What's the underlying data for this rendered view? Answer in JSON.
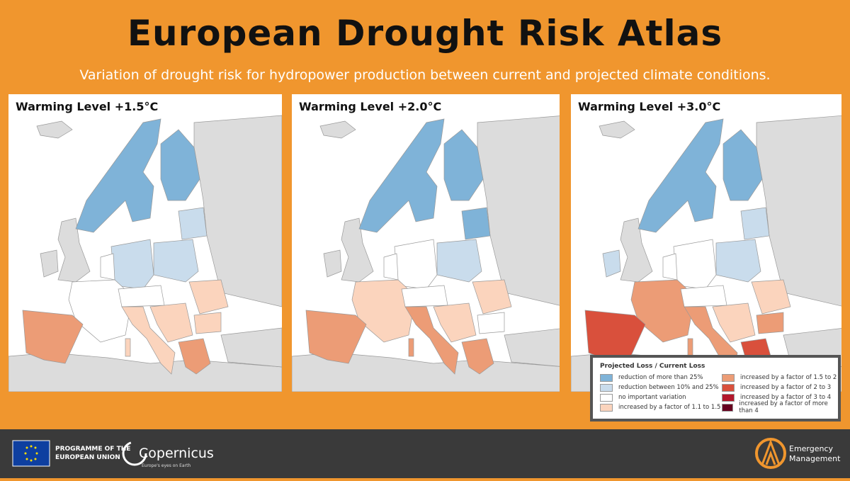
{
  "header": {
    "title": "European Drought Risk Atlas",
    "subtitle": "Variation of drought risk for hydropower production between current and projected climate conditions."
  },
  "maps": [
    {
      "label": "Warming Level +1.5°C"
    },
    {
      "label": "Warming Level +2.0°C"
    },
    {
      "label": "Warming Level +3.0°C"
    }
  ],
  "legend": {
    "title": "Projected Loss / Current Loss",
    "items": [
      {
        "label": "reduction of more than 25%",
        "color": "#7fb3d8"
      },
      {
        "label": "reduction between 10% and 25%",
        "color": "#c9dcec"
      },
      {
        "label": "no important variation",
        "color": "#ffffff"
      },
      {
        "label": "increased by a factor of 1.1 to 1.5",
        "color": "#fbd4bd"
      },
      {
        "label": "increased by a factor of 1.5 to 2",
        "color": "#ec9c76"
      },
      {
        "label": "increased by a factor of 2 to 3",
        "color": "#d9503c"
      },
      {
        "label": "increased by a factor of 3 to 4",
        "color": "#b3172b"
      },
      {
        "label": "increased by a factor of more than 4",
        "color": "#67001f"
      }
    ]
  },
  "footer": {
    "programme": [
      "PROGRAMME OF THE",
      "EUROPEAN UNION"
    ],
    "copernicus": "Copernicus",
    "copernicus_tagline": "Europe's eyes on Earth",
    "emergency": [
      "Emergency",
      "Management"
    ]
  }
}
